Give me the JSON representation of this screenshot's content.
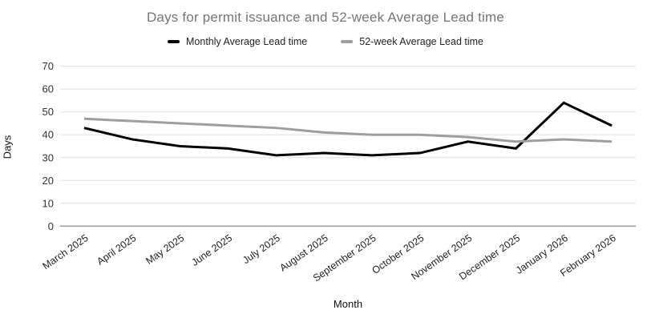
{
  "chart_data": {
    "type": "line",
    "title": "Days for permit issuance and 52-week Average Lead time",
    "xlabel": "Month",
    "ylabel": "Days",
    "ylim": [
      0,
      70
    ],
    "ytick_step": 10,
    "yticks": [
      0,
      10,
      20,
      30,
      40,
      50,
      60,
      70
    ],
    "grid": true,
    "legend_position": "top",
    "categories": [
      "March 2025",
      "April 2025",
      "May 2025",
      "June 2025",
      "July 2025",
      "August 2025",
      "September 2025",
      "October 2025",
      "November 2025",
      "December 2025",
      "January 2026",
      "February 2026"
    ],
    "series": [
      {
        "name": "Monthly Average Lead time",
        "color": "#000000",
        "values": [
          43,
          38,
          35,
          34,
          31,
          32,
          31,
          32,
          37,
          34,
          54,
          44
        ]
      },
      {
        "name": "52-week Average Lead time",
        "color": "#9e9e9e",
        "values": [
          47,
          46,
          45,
          44,
          43,
          41,
          40,
          40,
          39,
          37,
          38,
          37
        ]
      }
    ],
    "colors": {
      "title_text": "#757575",
      "axis_text": "#222222",
      "tick_text": "#333333",
      "gridline": "#e6e6e6",
      "baseline": "#9e9e9e",
      "background": "#ffffff"
    }
  }
}
